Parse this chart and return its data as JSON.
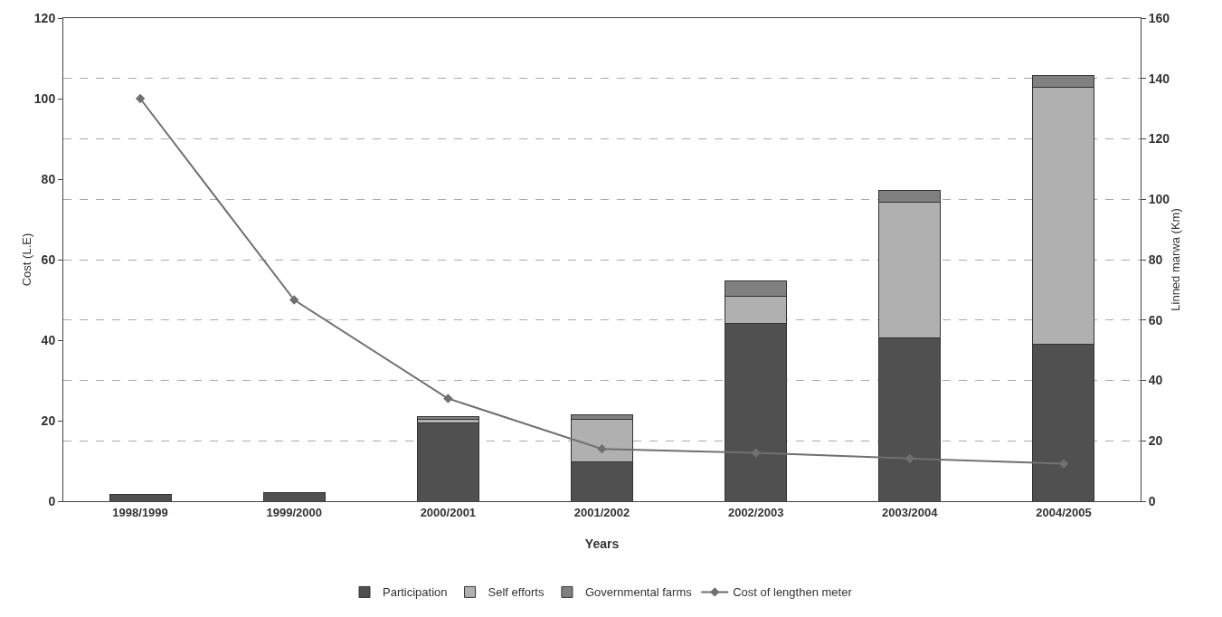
{
  "chart_data": {
    "type": "bar",
    "stacked": true,
    "xlabel": "Years",
    "ylabel": "Cost (L.E)",
    "y2label": "Linned marwa (Km)",
    "categories": [
      "1998/1999",
      "1999/2000",
      "2000/2001",
      "2001/2002",
      "2002/2003",
      "2003/2004",
      "2004/2005"
    ],
    "series": [
      {
        "name": "Participation",
        "color": "#505050",
        "axis": "y2",
        "values": [
          2.1,
          2.7,
          26,
          13,
          59,
          54,
          52
        ]
      },
      {
        "name": "Self efforts",
        "color": "#b0b0b0",
        "axis": "y2",
        "values": [
          null,
          null,
          1,
          14,
          9,
          45,
          85
        ]
      },
      {
        "name": "Governmental farms",
        "color": "#808080",
        "axis": "y2",
        "values": [
          null,
          null,
          1,
          1.5,
          5,
          4,
          4
        ]
      },
      {
        "name": "Cost of lengthen meter",
        "type": "line",
        "color": "#707070",
        "marker": "diamond",
        "values": [
          100,
          50,
          25.5,
          13,
          12,
          10.6,
          9.3
        ]
      }
    ],
    "ylim": [
      0,
      120
    ],
    "yticks": [
      0,
      20,
      40,
      60,
      80,
      100,
      120
    ],
    "y2lim": [
      0,
      160
    ],
    "y2ticks": [
      0,
      20,
      40,
      60,
      80,
      100,
      120,
      140,
      160
    ],
    "grid": "y",
    "legend": "bottom"
  }
}
